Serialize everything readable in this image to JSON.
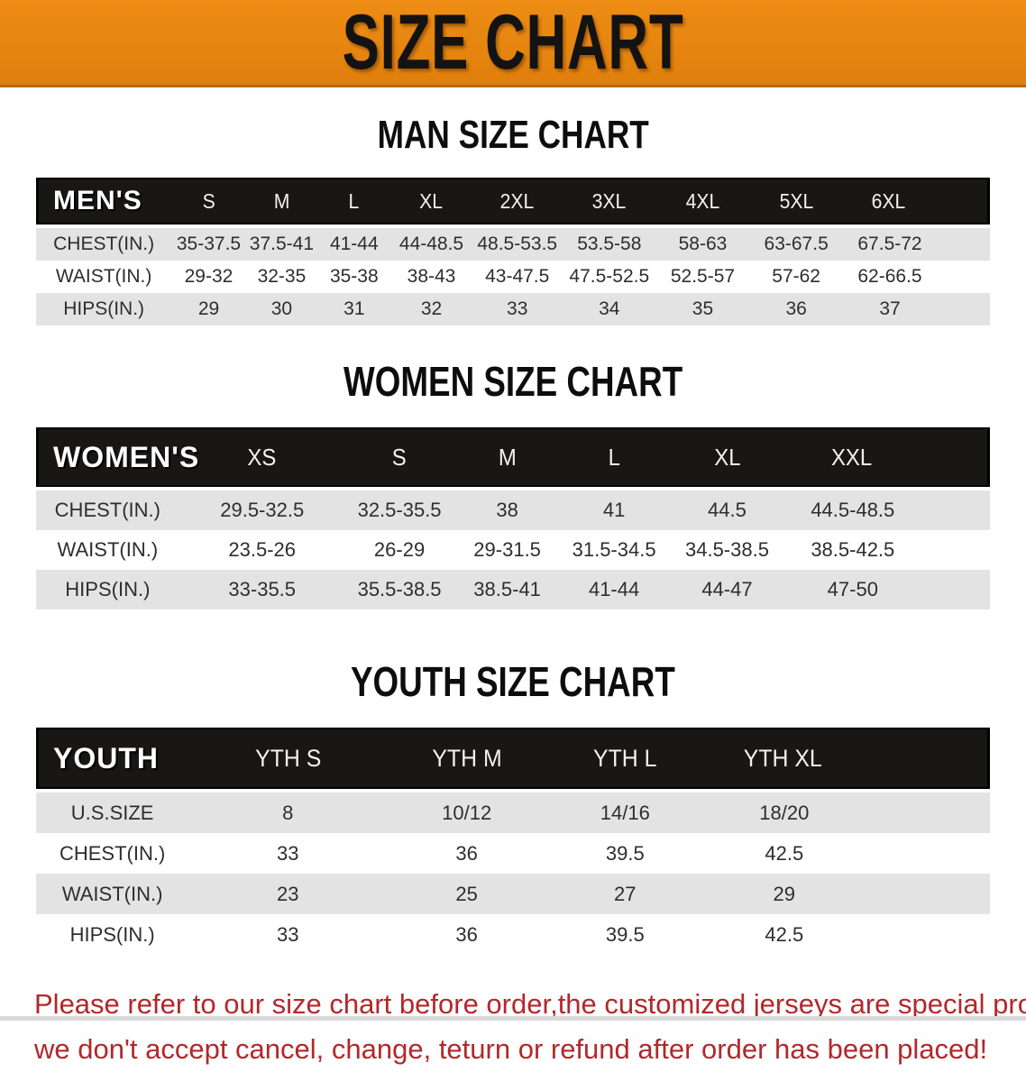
{
  "banner": {
    "title": "SIZE CHART"
  },
  "theme": {
    "banner_orange": "#E8830F",
    "header_black": "#191716",
    "row_gray": "#E3E3E3",
    "note_red": "#B2282B"
  },
  "sections": [
    {
      "heading": "MAN SIZE CHART",
      "table": {
        "label": "MEN'S",
        "columns": [
          "S",
          "M",
          "L",
          "XL",
          "2XL",
          "3XL",
          "4XL",
          "5XL",
          "6XL"
        ],
        "rows": [
          {
            "label": "CHEST(IN.)",
            "values": [
              "35-37.5",
              "37.5-41",
              "41-44",
              "44-48.5",
              "48.5-53.5",
              "53.5-58",
              "58-63",
              "63-67.5",
              "67.5-72"
            ]
          },
          {
            "label": "WAIST(IN.)",
            "values": [
              "29-32",
              "32-35",
              "35-38",
              "38-43",
              "43-47.5",
              "47.5-52.5",
              "52.5-57",
              "57-62",
              "62-66.5"
            ]
          },
          {
            "label": "HIPS(IN.)",
            "values": [
              "29",
              "30",
              "31",
              "32",
              "33",
              "34",
              "35",
              "36",
              "37"
            ]
          }
        ]
      }
    },
    {
      "heading": "WOMEN SIZE CHART",
      "table": {
        "label": "WOMEN'S",
        "columns": [
          "XS",
          "S",
          "M",
          "L",
          "XL",
          "XXL"
        ],
        "rows": [
          {
            "label": "CHEST(IN.)",
            "values": [
              "29.5-32.5",
              "32.5-35.5",
              "38",
              "41",
              "44.5",
              "44.5-48.5"
            ]
          },
          {
            "label": "WAIST(IN.)",
            "values": [
              "23.5-26",
              "26-29",
              "29-31.5",
              "31.5-34.5",
              "34.5-38.5",
              "38.5-42.5"
            ]
          },
          {
            "label": "HIPS(IN.)",
            "values": [
              "33-35.5",
              "35.5-38.5",
              "38.5-41",
              "41-44",
              "44-47",
              "47-50"
            ]
          }
        ]
      }
    },
    {
      "heading": "YOUTH SIZE CHART",
      "table": {
        "label": "YOUTH",
        "columns": [
          "YTH S",
          "YTH M",
          "YTH L",
          "YTH XL"
        ],
        "rows": [
          {
            "label": "U.S.SIZE",
            "values": [
              "8",
              "10/12",
              "14/16",
              "18/20"
            ]
          },
          {
            "label": "CHEST(IN.)",
            "values": [
              "33",
              "36",
              "39.5",
              "42.5"
            ]
          },
          {
            "label": "WAIST(IN.)",
            "values": [
              "23",
              "25",
              "27",
              "29"
            ]
          },
          {
            "label": "HIPS(IN.)",
            "values": [
              "33",
              "36",
              "39.5",
              "42.5"
            ]
          }
        ]
      }
    }
  ],
  "footer": {
    "line1": "Please refer to our size chart before order,the customized jerseys are special products,",
    "line2": "we don't accept cancel, change, teturn or refund after order has been placed!"
  }
}
